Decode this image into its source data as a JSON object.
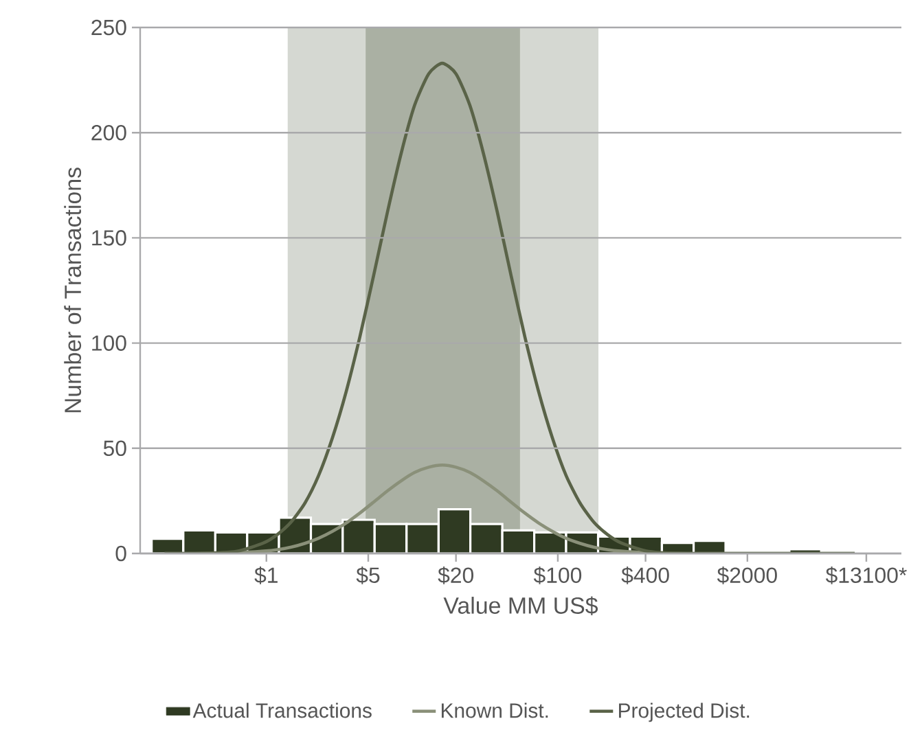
{
  "chart_data": {
    "type": "histogram",
    "xlabel": "Value MM US$",
    "ylabel": "Number of Transactions",
    "log": "x",
    "grid": "y",
    "legend": "bottom",
    "xlim": [
      0.136,
      22800
    ],
    "ylim": [
      0,
      250
    ],
    "xticks": [
      {
        "value": 1,
        "label": "$1"
      },
      {
        "value": 5,
        "label": "$5"
      },
      {
        "value": 20,
        "label": "$20"
      },
      {
        "value": 100,
        "label": "$100"
      },
      {
        "value": 400,
        "label": "$400"
      },
      {
        "value": 2000,
        "label": "$2000"
      },
      {
        "value": 13100,
        "label": "$13100*"
      }
    ],
    "yticks": [
      0,
      50,
      100,
      150,
      200,
      250
    ],
    "bands": [
      {
        "axis": "x",
        "from": 1.4,
        "to": 190,
        "color": "#d5d8d2"
      },
      {
        "axis": "x",
        "from": 4.8,
        "to": 55,
        "color": "#aab0a3"
      }
    ],
    "bins": [
      0.163,
      0.269,
      0.446,
      0.738,
      1.22,
      2.02,
      3.34,
      5.53,
      9.16,
      15.2,
      25.1,
      41.6,
      68.9,
      114,
      189,
      313,
      518,
      855,
      1416,
      3882,
      6427,
      10641
    ],
    "series": [
      {
        "name": "Actual Transactions",
        "color": "#2f3a22",
        "values": [
          7,
          11,
          10,
          10,
          17,
          14,
          16,
          14,
          14,
          21,
          14,
          11,
          10,
          10,
          8,
          8,
          5,
          6,
          0,
          2,
          1
        ]
      },
      {
        "name": "Known Dist.",
        "type": "line",
        "color": "#8a9079",
        "x": [
          0.2,
          0.323,
          0.62,
          0.957,
          1.19,
          1.48,
          1.84,
          2.28,
          2.84,
          3.53,
          4.38,
          5.44,
          6.76,
          8.4,
          10.4,
          13,
          16.1,
          20,
          24.9,
          30.9,
          38.5,
          47.8,
          59.4,
          73.8,
          91.7,
          114,
          142,
          176,
          219,
          272,
          419,
          805,
          10900
        ],
        "values": [
          0,
          0,
          0.3,
          1.1,
          1.8,
          3,
          4.8,
          7.2,
          10.5,
          14.5,
          19.2,
          24.4,
          29.7,
          34.5,
          38.5,
          41,
          42,
          41,
          38.5,
          34.5,
          29.7,
          24.4,
          19.2,
          14.5,
          10.5,
          7.2,
          4.8,
          3,
          1.8,
          1.1,
          0.3,
          0,
          0
        ]
      },
      {
        "name": "Projected Dist.",
        "type": "line",
        "color": "#5a6348",
        "x": [
          0.2,
          0.323,
          0.62,
          0.957,
          1.19,
          1.48,
          1.84,
          2.28,
          2.84,
          3.53,
          4.38,
          5.44,
          6.76,
          8.4,
          10.4,
          13,
          16.1,
          20,
          24.9,
          30.9,
          38.5,
          47.8,
          59.4,
          73.8,
          91.7,
          114,
          142,
          176,
          219,
          272,
          419,
          805,
          10900
        ],
        "values": [
          0,
          0,
          1,
          5,
          9,
          15,
          24,
          37,
          55,
          77,
          103,
          132,
          162,
          190,
          213,
          228,
          233,
          228,
          213,
          190,
          162,
          132,
          103,
          77,
          55,
          37,
          24,
          15,
          9,
          5,
          1,
          0,
          0
        ]
      }
    ]
  }
}
